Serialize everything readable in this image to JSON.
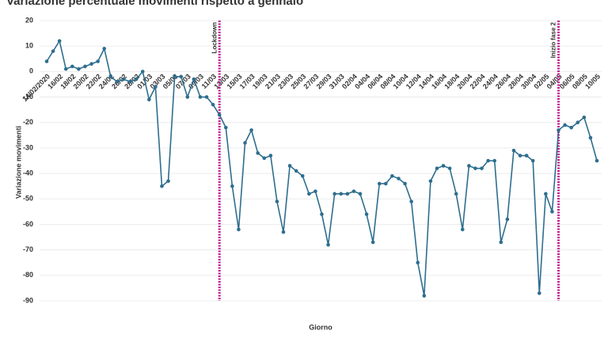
{
  "chart_data": {
    "type": "line",
    "title": "Variazione percentuale movimenti rispetto a gennaio",
    "x_label": "Giorno",
    "y_label": "Variazione movimenti",
    "categories": [
      "14/02/2020",
      null,
      "16/02",
      null,
      "18/02",
      null,
      "20/02",
      null,
      "22/02",
      null,
      "24/02",
      null,
      "26/02",
      null,
      "28/02",
      null,
      "01/03",
      null,
      "03/03",
      null,
      "05/03",
      null,
      "07/03",
      null,
      "09/03",
      null,
      "11/03",
      null,
      "13/03",
      null,
      "15/03",
      null,
      "17/03",
      null,
      "19/03",
      null,
      "21/03",
      null,
      "23/03",
      null,
      "25/03",
      null,
      "27/03",
      null,
      "29/03",
      null,
      "31/03",
      null,
      "02/04",
      null,
      "04/04",
      null,
      "06/04",
      null,
      "08/04",
      null,
      "10/04",
      null,
      "12/04",
      null,
      "14/04",
      null,
      "16/04",
      null,
      "18/04",
      null,
      "20/04",
      null,
      "22/04",
      null,
      "24/04",
      null,
      "26/04",
      null,
      "28/04",
      null,
      "30/04",
      null,
      "02/05",
      null,
      "04/05",
      null,
      "06/05",
      null,
      "08/05",
      null,
      "10/05"
    ],
    "series": [
      {
        "name": "Variazione movimenti",
        "color": "#2e6e8e",
        "values": [
          4,
          8,
          12,
          1,
          2,
          1,
          2,
          3,
          4,
          9,
          -2,
          -4,
          -3,
          -4,
          -3,
          0,
          -11,
          -6,
          -45,
          -43,
          -2,
          -2,
          -10,
          -3,
          -10,
          -10,
          -13,
          -17,
          -22,
          -45,
          -62,
          -28,
          -23,
          -32,
          -34,
          -33,
          -51,
          -63,
          -37,
          -39,
          -41,
          -48,
          -47,
          -56,
          -68,
          -48,
          -48,
          -48,
          -47,
          -48,
          -56,
          -67,
          -44,
          -44,
          -41,
          -42,
          -44,
          -51,
          -75,
          -88,
          -43,
          -38,
          -37,
          -38,
          -48,
          -62,
          -37,
          -38,
          -38,
          -35,
          -35,
          -67,
          -58,
          -31,
          -33,
          -33,
          -35,
          -87,
          -48,
          -55,
          -23,
          -21,
          -22,
          -20,
          -18,
          -26,
          -35
        ]
      }
    ],
    "ylim": [
      -90,
      20
    ],
    "yticks": [
      20,
      10,
      0,
      -10,
      -20,
      -30,
      -40,
      -50,
      -60,
      -70,
      -80,
      -90
    ],
    "grid": true,
    "annotations": [
      {
        "label": "Lockdown",
        "index": 27,
        "color": "#c0168f"
      },
      {
        "label": "Inizio fase 2",
        "index": 80,
        "color": "#c0168f"
      }
    ]
  }
}
